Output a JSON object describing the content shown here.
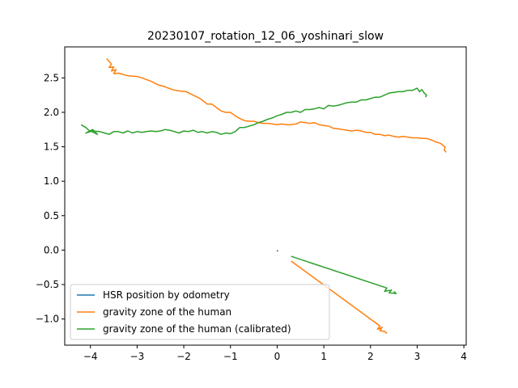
{
  "chart_data": {
    "type": "line",
    "title": "20230107_rotation_12_06_yoshinari_slow",
    "xlabel": "",
    "ylabel": "",
    "xlim": [
      -4.55,
      4.05
    ],
    "ylim": [
      -1.38,
      2.95
    ],
    "x_ticks": [
      -4,
      -3,
      -2,
      -1,
      0,
      1,
      2,
      3,
      4
    ],
    "x_tick_labels": [
      "−4",
      "−3",
      "−2",
      "−1",
      "0",
      "1",
      "2",
      "3",
      "4"
    ],
    "y_ticks": [
      -1.0,
      -0.5,
      0.0,
      0.5,
      1.0,
      1.5,
      2.0,
      2.5
    ],
    "y_tick_labels": [
      "−1.0",
      "−0.5",
      "0.0",
      "0.5",
      "1.0",
      "1.5",
      "2.0",
      "2.5"
    ],
    "grid": false,
    "legend_position": "lower-left",
    "series": [
      {
        "name": "HSR position by odometry",
        "color": "#1f77b4",
        "x": [
          0.0,
          0.01,
          0.0
        ],
        "y": [
          0.0,
          -0.01,
          -0.02
        ]
      },
      {
        "name": "gravity zone of the human",
        "color": "#ff7f0e",
        "x": [
          -3.65,
          -3.55,
          -3.6,
          -3.5,
          -3.55,
          -3.45,
          -3.5,
          -3.4,
          -3.3,
          -3.2,
          -3.0,
          -2.9,
          -2.7,
          -2.55,
          -2.4,
          -2.25,
          -2.1,
          -1.95,
          -1.8,
          -1.65,
          -1.5,
          -1.4,
          -1.3,
          -1.2,
          -1.1,
          -1.0,
          -0.9,
          -0.8,
          -0.7,
          -0.6,
          -0.5,
          -0.4,
          -0.3,
          -0.2,
          -0.1,
          0.0,
          0.1,
          0.2,
          0.3,
          0.4,
          0.5,
          0.6,
          0.7,
          0.8,
          0.9,
          1.0,
          1.1,
          1.2,
          1.3,
          1.4,
          1.5,
          1.6,
          1.7,
          1.8,
          1.9,
          2.0,
          2.1,
          2.2,
          2.3,
          2.4,
          2.5,
          2.6,
          2.7,
          2.8,
          2.9,
          3.0,
          3.1,
          3.2,
          3.3,
          3.4,
          3.5,
          3.55,
          3.6,
          3.58,
          3.62
        ],
        "y": [
          2.78,
          2.7,
          2.65,
          2.66,
          2.6,
          2.62,
          2.56,
          2.57,
          2.55,
          2.53,
          2.52,
          2.5,
          2.45,
          2.4,
          2.37,
          2.33,
          2.31,
          2.3,
          2.25,
          2.2,
          2.12,
          2.12,
          2.07,
          2.02,
          2.0,
          2.0,
          1.95,
          1.91,
          1.88,
          1.87,
          1.87,
          1.85,
          1.84,
          1.84,
          1.83,
          1.82,
          1.83,
          1.82,
          1.82,
          1.83,
          1.86,
          1.85,
          1.84,
          1.85,
          1.82,
          1.81,
          1.8,
          1.77,
          1.76,
          1.75,
          1.74,
          1.73,
          1.74,
          1.73,
          1.71,
          1.71,
          1.68,
          1.68,
          1.66,
          1.67,
          1.65,
          1.64,
          1.65,
          1.64,
          1.63,
          1.63,
          1.62,
          1.62,
          1.6,
          1.57,
          1.55,
          1.52,
          1.5,
          1.45,
          1.42
        ]
      },
      {
        "name": "gravity zone of the human",
        "color": "#ff7f0e",
        "x": [
          0.3,
          2.2,
          2.15,
          2.25,
          2.2,
          2.3,
          2.35
        ],
        "y": [
          -0.16,
          -1.1,
          -1.15,
          -1.12,
          -1.17,
          -1.18,
          -1.21
        ]
      },
      {
        "name": "gravity zone of the human (calibrated)",
        "color": "#2ca02c",
        "x": [
          -4.2,
          -4.1,
          -4.0,
          -4.1,
          -3.95,
          -3.85,
          -4.0,
          -3.8,
          -3.7,
          -3.6,
          -3.5,
          -3.4,
          -3.3,
          -3.2,
          -3.1,
          -3.0,
          -2.9,
          -2.8,
          -2.7,
          -2.6,
          -2.5,
          -2.4,
          -2.3,
          -2.2,
          -2.1,
          -2.0,
          -1.9,
          -1.8,
          -1.7,
          -1.6,
          -1.5,
          -1.4,
          -1.3,
          -1.2,
          -1.1,
          -1.0,
          -0.9,
          -0.8,
          -0.7,
          -0.6,
          -0.5,
          -0.4,
          -0.3,
          -0.2,
          -0.1,
          0.0,
          0.1,
          0.2,
          0.3,
          0.4,
          0.5,
          0.6,
          0.7,
          0.8,
          0.9,
          1.0,
          1.1,
          1.2,
          1.3,
          1.4,
          1.5,
          1.6,
          1.7,
          1.8,
          1.9,
          2.0,
          2.1,
          2.2,
          2.3,
          2.4,
          2.5,
          2.6,
          2.7,
          2.8,
          2.9,
          3.0,
          3.05,
          3.1,
          3.15,
          3.2,
          3.18
        ],
        "y": [
          1.82,
          1.78,
          1.72,
          1.7,
          1.75,
          1.68,
          1.73,
          1.72,
          1.7,
          1.68,
          1.72,
          1.72,
          1.7,
          1.73,
          1.7,
          1.72,
          1.71,
          1.72,
          1.73,
          1.72,
          1.73,
          1.75,
          1.74,
          1.72,
          1.7,
          1.73,
          1.72,
          1.74,
          1.71,
          1.72,
          1.7,
          1.72,
          1.71,
          1.68,
          1.7,
          1.69,
          1.72,
          1.78,
          1.78,
          1.8,
          1.82,
          1.85,
          1.87,
          1.9,
          1.92,
          1.95,
          1.97,
          2.0,
          2.0,
          2.02,
          2.0,
          2.04,
          2.04,
          2.05,
          2.07,
          2.05,
          2.1,
          2.09,
          2.1,
          2.12,
          2.14,
          2.15,
          2.15,
          2.18,
          2.18,
          2.2,
          2.22,
          2.22,
          2.25,
          2.28,
          2.29,
          2.3,
          2.3,
          2.32,
          2.32,
          2.35,
          2.3,
          2.33,
          2.28,
          2.25,
          2.22
        ]
      },
      {
        "name": "gravity zone of the human (calibrated)",
        "color": "#2ca02c",
        "x": [
          0.3,
          2.35,
          2.3,
          2.45,
          2.4,
          2.55,
          2.5
        ],
        "y": [
          -0.09,
          -0.55,
          -0.6,
          -0.58,
          -0.62,
          -0.63,
          -0.6
        ]
      }
    ],
    "legend": [
      {
        "label": "HSR position by odometry",
        "color": "#1f77b4"
      },
      {
        "label": "gravity zone of the human",
        "color": "#ff7f0e"
      },
      {
        "label": "gravity zone of the human (calibrated)",
        "color": "#2ca02c"
      }
    ]
  }
}
